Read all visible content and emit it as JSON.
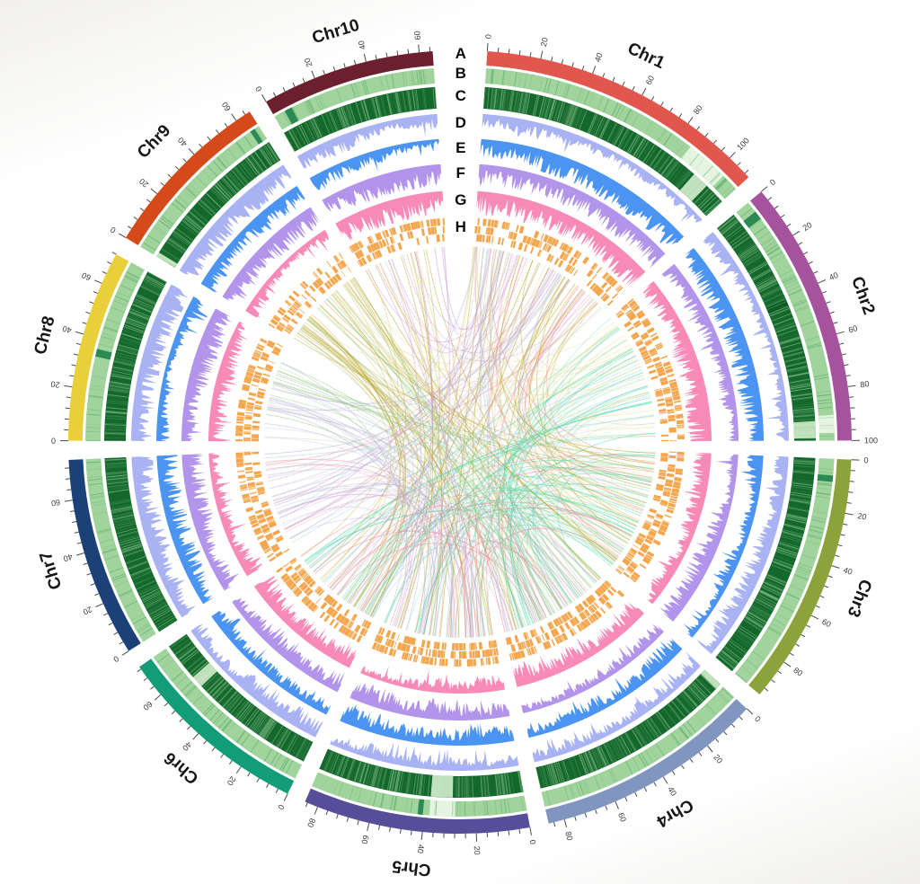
{
  "figure": {
    "description": "circular multi-track genome plot (circos style)",
    "background": "#fdfdfc"
  },
  "chart_data": {
    "type": "circos",
    "center": [
      512,
      492
    ],
    "top_gap_degrees": 8,
    "gap_degrees": 2.8,
    "seed": 42,
    "chromosomes": [
      {
        "name": "Chr1",
        "size": 110,
        "color": "#E2574D"
      },
      {
        "name": "Chr2",
        "size": 100,
        "color": "#A4539C"
      },
      {
        "name": "Chr3",
        "size": 95,
        "color": "#8CA33C"
      },
      {
        "name": "Chr4",
        "size": 86,
        "color": "#8096BF"
      },
      {
        "name": "Chr5",
        "size": 85,
        "color": "#564E98"
      },
      {
        "name": "Chr6",
        "size": 73,
        "color": "#129C78"
      },
      {
        "name": "Chr7",
        "size": 75,
        "color": "#1C4078"
      },
      {
        "name": "Chr8",
        "size": 72,
        "color": "#E9CF39"
      },
      {
        "name": "Chr9",
        "size": 66,
        "color": "#D44A1A"
      },
      {
        "name": "Chr10",
        "size": 65,
        "color": "#6C1F2C"
      }
    ],
    "axis": {
      "minor_tick_units": 4,
      "major_tick_units": 20,
      "tick_color": "#4a4a4a",
      "label_color": "#3a3a3a",
      "label_font_px": 9,
      "tick_r": 436,
      "minor_len": 5,
      "major_len": 9,
      "label_r": 450,
      "name_r": 477,
      "name_font_px": 19,
      "name_color": "#161616"
    },
    "tracks": [
      {
        "label": "A",
        "kind": "ideogram",
        "r_outer": 436,
        "r_inner": 420
      },
      {
        "label": "B",
        "kind": "heatmap",
        "r_outer": 417,
        "r_inner": 400,
        "base_color": "#A1D39C",
        "line_color": "#35984E",
        "pale_color": "#EAF6E6",
        "dark_color": "#2B8A54",
        "line_density": 0.45,
        "dark_segments": [
          [
            9,
            4.5,
            7.5
          ],
          [
            1,
            4.5,
            8
          ],
          [
            7,
            33,
            36
          ],
          [
            2,
            6.5,
            9
          ],
          [
            4,
            40.5,
            42.5
          ],
          [
            8,
            62,
            64
          ]
        ],
        "pale_segments": [
          [
            0,
            86,
            103
          ],
          [
            4,
            28,
            38
          ],
          [
            1,
            90,
            97
          ]
        ]
      },
      {
        "label": "C",
        "kind": "heatmap",
        "r_outer": 396,
        "r_inner": 372,
        "base_color": "#14682C",
        "line_color": "#A8DCA6",
        "pale_color": "#D3EDCC",
        "dark_color": "#0B5B26",
        "line_density": 1.6,
        "dark_segments": [
          [
            1,
            40,
            45
          ]
        ],
        "pale_segments": [
          [
            4,
            29,
            38
          ],
          [
            0,
            94,
            101
          ],
          [
            1,
            92,
            99
          ],
          [
            3,
            0,
            2.5
          ],
          [
            8,
            0,
            2
          ],
          [
            5,
            52,
            57
          ]
        ]
      },
      {
        "label": "D",
        "kind": "histogram",
        "r_outer": 366,
        "r_inner": 342,
        "color": "#A2ACF2"
      },
      {
        "label": "E",
        "kind": "histogram",
        "r_outer": 338,
        "r_inner": 314,
        "color": "#3D8BF0"
      },
      {
        "label": "F",
        "kind": "histogram",
        "r_outer": 310,
        "r_inner": 286,
        "color": "#AB8BE8"
      },
      {
        "label": "G",
        "kind": "histogram",
        "r_outer": 280,
        "r_inner": 254,
        "color": "#F780B2"
      },
      {
        "label": "H",
        "kind": "tiles",
        "r_outer": 250,
        "r_inner": 224,
        "color": "#F4A142",
        "rows": 3,
        "fill_prob": 0.62
      }
    ],
    "links": {
      "endpoint_r": 218,
      "stroke_width": 0.9,
      "groups": [
        {
          "color": "#BC9C10",
          "count": 75,
          "from": [
            8,
            9,
            0
          ],
          "to": [
            4,
            3,
            2,
            5
          ]
        },
        {
          "color": "#45D9A6",
          "count": 65,
          "from": [
            1,
            2
          ],
          "to": [
            4,
            5,
            3
          ]
        },
        {
          "color": "#E9DE9C",
          "count": 35,
          "from": [
            0,
            1
          ],
          "to": [
            1,
            2,
            8
          ]
        },
        {
          "color": "#ED8296",
          "count": 45,
          "from": [
            0,
            4,
            5
          ],
          "to": [
            2,
            3,
            6
          ]
        },
        {
          "color": "#B7B1D1",
          "count": 50,
          "from": [
            5,
            6,
            7
          ],
          "to": [
            3,
            4,
            0
          ]
        },
        {
          "color": "#90C87D",
          "count": 28,
          "from": [
            2,
            3
          ],
          "to": [
            7,
            8
          ]
        },
        {
          "color": "#A8C8E8",
          "count": 20,
          "from": [
            6,
            3
          ],
          "to": [
            1,
            0
          ]
        },
        {
          "color": "#CE96D6",
          "count": 22,
          "from": [
            4,
            0
          ],
          "to": [
            6,
            9
          ]
        }
      ]
    }
  }
}
